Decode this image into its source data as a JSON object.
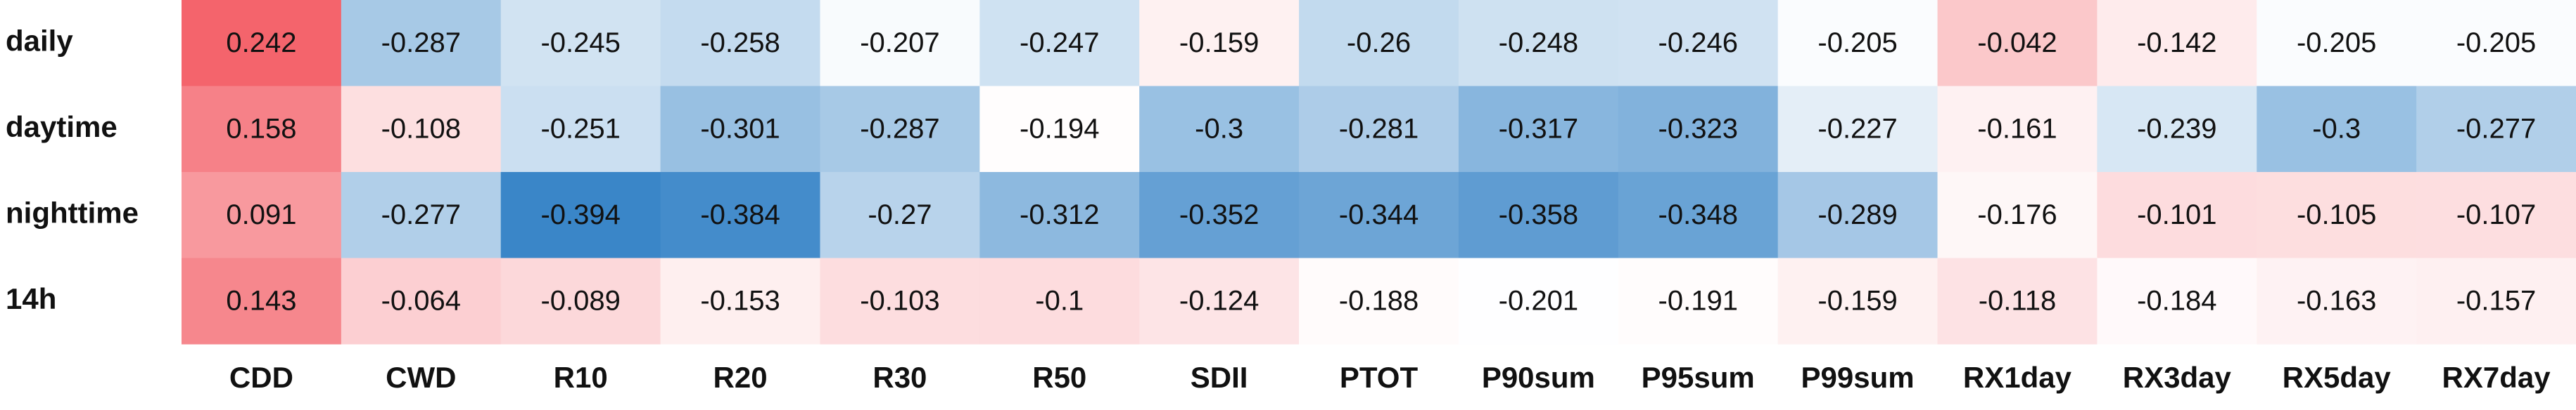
{
  "chart_data": {
    "type": "heatmap",
    "rows": [
      "daily",
      "daytime",
      "nighttime",
      "14h"
    ],
    "columns": [
      "CDD",
      "CWD",
      "R10",
      "R20",
      "R30",
      "R50",
      "SDII",
      "PTOT",
      "P90sum",
      "P95sum",
      "P99sum",
      "RX1day",
      "RX3day",
      "RX5day",
      "RX7day"
    ],
    "values": [
      [
        0.242,
        -0.287,
        -0.245,
        -0.258,
        -0.207,
        -0.247,
        -0.159,
        -0.26,
        -0.248,
        -0.246,
        -0.205,
        -0.042,
        -0.142,
        -0.205,
        -0.205
      ],
      [
        0.158,
        -0.108,
        -0.251,
        -0.301,
        -0.287,
        -0.194,
        -0.3,
        -0.281,
        -0.317,
        -0.323,
        -0.227,
        -0.161,
        -0.239,
        -0.3,
        -0.277
      ],
      [
        0.091,
        -0.277,
        -0.394,
        -0.384,
        -0.27,
        -0.312,
        -0.352,
        -0.344,
        -0.358,
        -0.348,
        -0.289,
        -0.176,
        -0.101,
        -0.105,
        -0.107
      ],
      [
        0.143,
        -0.064,
        -0.089,
        -0.153,
        -0.103,
        -0.1,
        -0.124,
        -0.188,
        -0.201,
        -0.191,
        -0.159,
        -0.118,
        -0.184,
        -0.163,
        -0.157
      ]
    ],
    "colors": {
      "low": "#3a86c8",
      "mid": "#ffffff",
      "high": "#f4646c"
    },
    "color_center": -0.2
  }
}
